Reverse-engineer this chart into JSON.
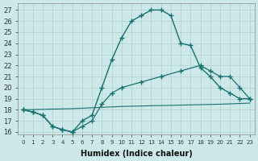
{
  "background_color": "#cce8e8",
  "grid_color": "#aed0d0",
  "line_color": "#1a7070",
  "xlabel": "Humidex (Indice chaleur)",
  "xlim": [
    -0.5,
    23.5
  ],
  "ylim": [
    15.8,
    27.6
  ],
  "xticks": [
    0,
    1,
    2,
    3,
    4,
    5,
    6,
    7,
    8,
    9,
    10,
    11,
    12,
    13,
    14,
    15,
    16,
    17,
    18,
    19,
    20,
    21,
    22,
    23
  ],
  "yticks": [
    16,
    17,
    18,
    19,
    20,
    21,
    22,
    23,
    24,
    25,
    26,
    27
  ],
  "line1_x": [
    0,
    1,
    2,
    3,
    4,
    5,
    6,
    7,
    8,
    9,
    10,
    11,
    12,
    13,
    14,
    15,
    16,
    17,
    18,
    19,
    20,
    21,
    22,
    23
  ],
  "line1_y": [
    18.0,
    17.8,
    17.5,
    16.5,
    16.2,
    16.0,
    17.0,
    17.5,
    20.0,
    22.5,
    24.5,
    26.0,
    26.5,
    27.0,
    27.0,
    26.5,
    24.0,
    23.8,
    21.8,
    21.0,
    20.0,
    19.5,
    19.0,
    19.0
  ],
  "line2_x": [
    0,
    1,
    2,
    3,
    4,
    5,
    6,
    7,
    8,
    9,
    10,
    12,
    14,
    16,
    18,
    19,
    20,
    21,
    22,
    23
  ],
  "line2_y": [
    18.0,
    17.8,
    17.5,
    16.5,
    16.2,
    16.0,
    16.5,
    17.0,
    18.5,
    19.5,
    20.0,
    20.5,
    21.0,
    21.5,
    22.0,
    21.5,
    21.0,
    21.0,
    20.0,
    19.0
  ],
  "line3_x": [
    0,
    5,
    10,
    15,
    20,
    23
  ],
  "line3_y": [
    18.0,
    18.1,
    18.3,
    18.4,
    18.5,
    18.6
  ]
}
